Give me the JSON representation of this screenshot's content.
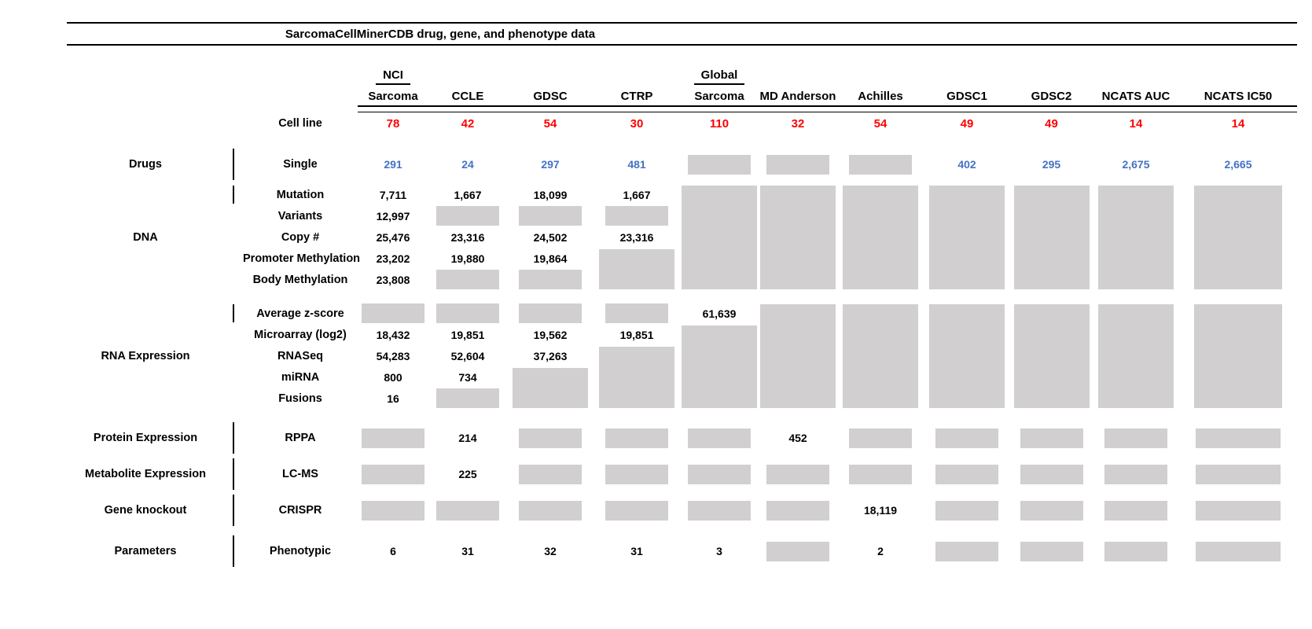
{
  "title": "SarcomaCellMinerCDB drug, gene, and phenotype data",
  "colors": {
    "red": "#ff0000",
    "blue": "#4472c4",
    "gray_box": "#d1cfcf",
    "text": "#000000"
  },
  "cell_line_label": "Cell line",
  "columns": [
    {
      "topLabel": "NCI",
      "label": "Sarcoma",
      "count": "78"
    },
    {
      "label": "CCLE",
      "count": "42"
    },
    {
      "label": "GDSC",
      "count": "54"
    },
    {
      "label": "CTRP",
      "count": "30"
    },
    {
      "topLabel": "Global",
      "label": "Sarcoma",
      "count": "110"
    },
    {
      "label": "MD Anderson",
      "count": "32"
    },
    {
      "label": "Achilles",
      "count": "54"
    },
    {
      "label": "GDSC1",
      "count": "49"
    },
    {
      "label": "GDSC2",
      "count": "49"
    },
    {
      "label": "NCATS AUC",
      "count": "14"
    },
    {
      "label": "NCATS IC50",
      "count": "14"
    }
  ],
  "groups": [
    {
      "category": "Drugs",
      "rows": [
        {
          "label": "Single",
          "valueColor": "blue",
          "cells": [
            "291",
            "24",
            "297",
            "481",
            {
              "box": 1
            },
            {
              "box": 1
            },
            {
              "box": 1
            },
            "402",
            "295",
            "2,675",
            "2,665"
          ]
        }
      ]
    },
    {
      "category": "DNA",
      "rows": [
        {
          "label": "Mutation",
          "cells": [
            "7,711",
            "1,667",
            "18,099",
            "1,667",
            {
              "box": 5
            },
            {
              "box": 5
            },
            {
              "box": 5
            },
            {
              "box": 5
            },
            {
              "box": 5
            },
            {
              "box": 5
            },
            {
              "box": 5
            }
          ]
        },
        {
          "label": "Variants",
          "cells": [
            "12,997",
            {
              "box": 1
            },
            {
              "box": 1
            },
            {
              "box": 1
            },
            null,
            null,
            null,
            null,
            null,
            null,
            null
          ]
        },
        {
          "label": "Copy #",
          "cells": [
            "25,476",
            "23,316",
            "24,502",
            "23,316",
            null,
            null,
            null,
            null,
            null,
            null,
            null
          ]
        },
        {
          "label": "Promoter Methylation",
          "cells": [
            "23,202",
            "19,880",
            "19,864",
            {
              "box": 2
            },
            null,
            null,
            null,
            null,
            null,
            null,
            null
          ]
        },
        {
          "label": "Body Methylation",
          "cells": [
            "23,808",
            {
              "box": 1
            },
            {
              "box": 1
            },
            null,
            null,
            null,
            null,
            null,
            null,
            null,
            null
          ]
        }
      ]
    },
    {
      "category": "RNA Expression",
      "rows": [
        {
          "label": "Average z-score",
          "cells": [
            {
              "box": 1
            },
            {
              "box": 1
            },
            {
              "box": 1
            },
            {
              "box": 1
            },
            "61,639",
            {
              "box": 5
            },
            {
              "box": 5
            },
            {
              "box": 5
            },
            {
              "box": 5
            },
            {
              "box": 5
            },
            {
              "box": 5
            }
          ]
        },
        {
          "label": "Microarray (log2)",
          "cells": [
            "18,432",
            "19,851",
            "19,562",
            "19,851",
            {
              "box": 4
            },
            null,
            null,
            null,
            null,
            null,
            null
          ]
        },
        {
          "label": "RNASeq",
          "cells": [
            "54,283",
            "52,604",
            "37,263",
            {
              "box": 3
            },
            null,
            null,
            null,
            null,
            null,
            null,
            null
          ]
        },
        {
          "label": "miRNA",
          "cells": [
            "800",
            "734",
            {
              "box": 2
            },
            null,
            null,
            null,
            null,
            null,
            null,
            null,
            null
          ]
        },
        {
          "label": "Fusions",
          "cells": [
            "16",
            {
              "box": 1
            },
            null,
            null,
            null,
            null,
            null,
            null,
            null,
            null,
            null
          ]
        }
      ]
    },
    {
      "category": "Protein Expression",
      "rows": [
        {
          "label": "RPPA",
          "cells": [
            {
              "box": 1
            },
            "214",
            {
              "box": 1
            },
            {
              "box": 1
            },
            {
              "box": 1
            },
            "452",
            {
              "box": 1
            },
            {
              "box": 1
            },
            {
              "box": 1
            },
            {
              "box": 1
            },
            {
              "box": 1
            }
          ]
        }
      ]
    },
    {
      "category": "Metabolite Expression",
      "rows": [
        {
          "label": "LC-MS",
          "cells": [
            {
              "box": 1
            },
            "225",
            {
              "box": 1
            },
            {
              "box": 1
            },
            {
              "box": 1
            },
            {
              "box": 1
            },
            {
              "box": 1
            },
            {
              "box": 1
            },
            {
              "box": 1
            },
            {
              "box": 1
            },
            {
              "box": 1
            }
          ]
        }
      ]
    },
    {
      "category": "Gene knockout",
      "rows": [
        {
          "label": "CRISPR",
          "cells": [
            {
              "box": 1
            },
            {
              "box": 1
            },
            {
              "box": 1
            },
            {
              "box": 1
            },
            {
              "box": 1
            },
            {
              "box": 1
            },
            "18,119",
            {
              "box": 1
            },
            {
              "box": 1
            },
            {
              "box": 1
            },
            {
              "box": 1
            }
          ]
        }
      ]
    },
    {
      "category": "Parameters",
      "rows": [
        {
          "label": "Phenotypic",
          "cells": [
            "6",
            "31",
            "32",
            "31",
            "3",
            {
              "box": 1
            },
            "2",
            {
              "box": 1
            },
            {
              "box": 1
            },
            {
              "box": 1
            },
            {
              "box": 1
            }
          ]
        }
      ]
    }
  ]
}
